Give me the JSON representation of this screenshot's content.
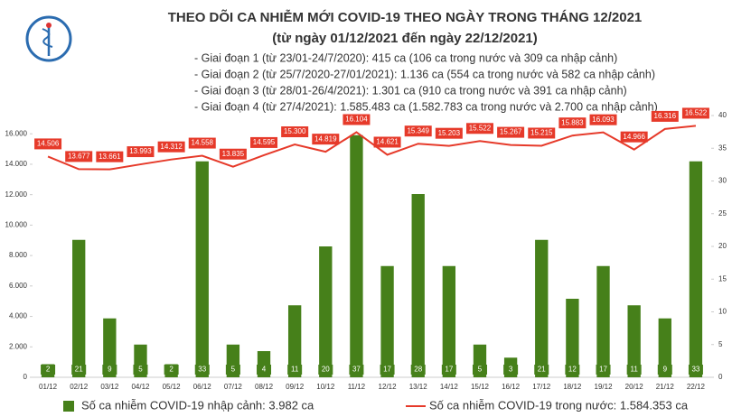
{
  "chart_data": {
    "type": "bar-line",
    "title": "THEO DÕI CA NHIỄM MỚI COVID-19 THEO NGÀY TRONG THÁNG 12/2021",
    "subtitle": "(từ ngày 01/12/2021 đến ngày 22/12/2021)",
    "notes": [
      "- Giai đoạn 1 (từ 23/01-24/7/2020): 415 ca (106 ca trong nước và 309 ca nhập cảnh)",
      "- Giai đoạn 2 (từ 25/7/2020-27/01/2021): 1.136 ca (554 ca trong nước và 582 ca nhập cảnh)",
      "- Giai đoạn 3 (từ 28/01-26/4/2021): 1.301 ca (910 ca trong nước và 391 ca nhập cảnh)",
      "- Giai đoạn 4 (từ 27/4/2021): 1.585.483 ca (1.582.783 ca trong nước và 2.700 ca nhập cảnh)"
    ],
    "categories": [
      "01/12",
      "02/12",
      "03/12",
      "04/12",
      "05/12",
      "06/12",
      "07/12",
      "08/12",
      "09/12",
      "10/12",
      "11/12",
      "12/12",
      "13/12",
      "14/12",
      "15/12",
      "16/12",
      "17/12",
      "18/12",
      "19/12",
      "20/12",
      "21/12",
      "22/12"
    ],
    "series": [
      {
        "name": "Số ca nhiễm COVID-19 nhập cảnh: 3.982 ca",
        "type": "bar",
        "axis": "y2",
        "color": "#46801a",
        "values": [
          2,
          21,
          9,
          5,
          2,
          33,
          5,
          4,
          11,
          20,
          37,
          17,
          28,
          17,
          5,
          3,
          21,
          12,
          17,
          11,
          9,
          33
        ]
      },
      {
        "name": "Số ca nhiễm COVID-19 trong nước: 1.584.353 ca",
        "type": "line",
        "color": "#e63a2a",
        "values": [
          14506,
          13677,
          13661,
          13993,
          14312,
          14558,
          13835,
          14595,
          15300,
          14819,
          16104,
          14621,
          15349,
          15203,
          15522,
          15267,
          15215,
          15883,
          16093,
          14966,
          16316,
          16522
        ],
        "value_labels": [
          "14.506",
          "13.677",
          "13.661",
          "13.993",
          "14.312",
          "14.558",
          "13.835",
          "14.595",
          "15.300",
          "14.819",
          "16.104",
          "14.621",
          "15.349",
          "15.203",
          "15.522",
          "15.267",
          "15.215",
          "15.883",
          "16.093",
          "14.966",
          "16.316",
          "16.522"
        ]
      }
    ],
    "ylim": [
      0,
      17200
    ],
    "yticks": [
      {
        "value": 0,
        "label": "0"
      },
      {
        "value": 2000,
        "label": "2.000"
      },
      {
        "value": 4000,
        "label": "4.000"
      },
      {
        "value": 6000,
        "label": "6.000"
      },
      {
        "value": 8000,
        "label": "8.000"
      },
      {
        "value": 10000,
        "label": "10.000"
      },
      {
        "value": 12000,
        "label": "12.000"
      },
      {
        "value": 14000,
        "label": "14.000"
      },
      {
        "value": 16000,
        "label": "16.000"
      }
    ],
    "y2lim": [
      0,
      40
    ],
    "y2ticks": [
      0,
      5,
      10,
      15,
      20,
      25,
      30,
      35,
      40
    ]
  }
}
